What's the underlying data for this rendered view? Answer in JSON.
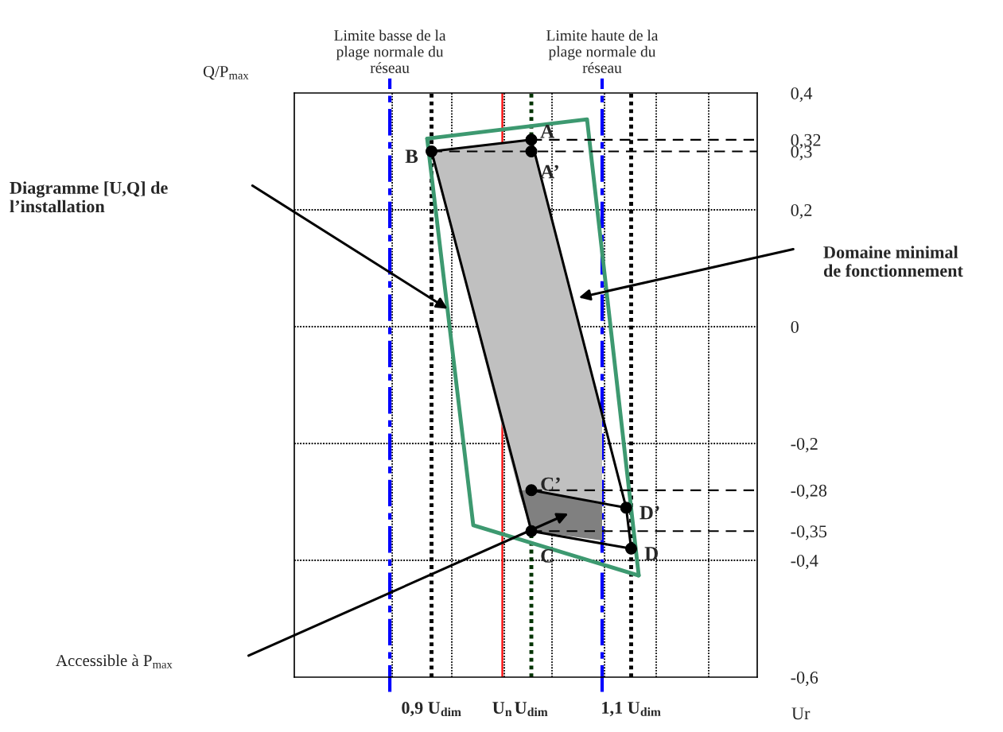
{
  "chart_data": {
    "type": "line",
    "xlabel": "Ur",
    "ylabel": "Q/P$_{max}$",
    "xlim": [
      0.7625,
      1.2263
    ],
    "ylim": [
      -0.6,
      0.4
    ],
    "xticks": [
      {
        "value": 0.9,
        "label": "0,9 U$_{dim}$"
      },
      {
        "value": 0.9709,
        "label": "U$_{n}$"
      },
      {
        "value": 1.0,
        "label": "U$_{dim}$"
      },
      {
        "value": 1.1,
        "label": "1,1 U$_{dim}$"
      }
    ],
    "yticks": [
      {
        "value": 0.4,
        "label": "0,4"
      },
      {
        "value": 0.32,
        "label": "0,32"
      },
      {
        "value": 0.3,
        "label": "0,3"
      },
      {
        "value": 0.2,
        "label": "0,2"
      },
      0,
      {
        "value": -0.2,
        "label": "-0,2"
      },
      {
        "value": -0.28,
        "label": "-0,28"
      },
      {
        "value": -0.35,
        "label": "-0,35"
      },
      {
        "value": -0.4,
        "label": "-0,4"
      },
      {
        "value": -0.6,
        "label": "-0,6"
      }
    ],
    "series": [
      {
        "type": "area",
        "color": "#c0c0c0",
        "x": [
          0.9,
          1.0,
          1.0709,
          1.0709,
          1.0,
          0.987
        ],
        "values": [
          0.3,
          0.32,
          -0.155,
          -0.304,
          -0.28,
          -0.28
        ]
      },
      {
        "type": "area",
        "color": "#808080",
        "x": [
          0.987,
          1.0,
          1.0709,
          1.0709,
          1.0
        ],
        "values": [
          -0.28,
          -0.28,
          -0.304,
          -0.366,
          -0.35
        ]
      },
      {
        "color": "#000000",
        "line_style": "solid",
        "x": [
          0.9,
          1.0,
          1.095,
          1.1
        ],
        "values": [
          0.3,
          0.32,
          -0.31,
          -0.38
        ]
      },
      {
        "color": "#000000",
        "line_style": "solid",
        "x": [
          0.9,
          1.0,
          1.1
        ],
        "values": [
          0.3,
          -0.35,
          -0.38
        ]
      },
      {
        "color": "#000000",
        "line_style": "solid",
        "x": [
          1.0,
          1.095
        ],
        "values": [
          -0.28,
          -0.31
        ]
      },
      {
        "color": "#3d9970",
        "line_style": "solid",
        "x": [
          0.8956,
          1.0558,
          1.1076
        ],
        "values": [
          0.322,
          0.355,
          -0.426
        ]
      },
      {
        "color": "#3d9970",
        "line_style": "solid",
        "x": [
          0.8956,
          0.9418,
          1.1076
        ],
        "values": [
          0.322,
          -0.34,
          -0.426
        ]
      },
      {
        "type": "line",
        "color": "#000000",
        "line_style": "dashed",
        "x": [
          1.0,
          1.2263
        ],
        "values": [
          0.32,
          0.32
        ]
      },
      {
        "type": "line",
        "color": "#000000",
        "line_style": "dashed",
        "x": [
          0.9,
          1.2263
        ],
        "values": [
          0.3,
          0.3
        ]
      },
      {
        "type": "line",
        "color": "#000000",
        "line_style": "dashed",
        "x": [
          1.0,
          1.2263
        ],
        "values": [
          -0.28,
          -0.28
        ]
      },
      {
        "type": "line",
        "color": "#000000",
        "line_style": "dashed",
        "x": [
          1.0,
          1.2263
        ],
        "values": [
          -0.35,
          -0.35
        ]
      },
      {
        "type": "scatter",
        "color": "#000000",
        "marker": "circle",
        "x": [
          0.9,
          1.0,
          1.0,
          1.0,
          1.0,
          1.095,
          1.1
        ],
        "values": [
          0.3,
          0.32,
          0.3,
          -0.28,
          -0.35,
          -0.31,
          -0.38
        ]
      }
    ],
    "ref_lines": [
      {
        "axis": "y",
        "value": 0.2,
        "color": "#000000",
        "line_style": "dotted"
      },
      {
        "axis": "y",
        "value": 0,
        "color": "#000000",
        "line_style": "dotted"
      },
      {
        "axis": "y",
        "value": -0.2,
        "color": "#000000",
        "line_style": "dotted"
      },
      {
        "axis": "y",
        "value": -0.4,
        "color": "#000000",
        "line_style": "dotted"
      },
      {
        "axis": "x",
        "value": 0.8606,
        "color": "#000000",
        "line_style": "dotted"
      },
      {
        "axis": "x",
        "value": 0.9203,
        "color": "#000000",
        "line_style": "dotted"
      },
      {
        "axis": "x",
        "value": 0.9729,
        "color": "#000000",
        "line_style": "dotted"
      },
      {
        "axis": "x",
        "value": 1.0207,
        "color": "#000000",
        "line_style": "dotted"
      },
      {
        "axis": "x",
        "value": 1.0733,
        "color": "#000000",
        "line_style": "dotted"
      },
      {
        "axis": "x",
        "value": 1.1251,
        "color": "#000000",
        "line_style": "dotted"
      },
      {
        "axis": "x",
        "value": 1.1777,
        "color": "#000000",
        "line_style": "dotted"
      },
      {
        "axis": "x",
        "value": 0.8582,
        "color": "#0000ff",
        "line_style": "dashdot",
        "label": "Limite basse de la\nplage normale du\nréseau"
      },
      {
        "axis": "x",
        "value": 1.0709,
        "color": "#0000ff",
        "line_style": "dashdot",
        "label": "Limite haute de la\nplage normale du\nréseau"
      },
      {
        "axis": "x",
        "value": 0.9,
        "color": "#000000",
        "line_style": "heavy_dotted"
      },
      {
        "axis": "x",
        "value": 1.1,
        "color": "#000000",
        "line_style": "heavy_dotted"
      },
      {
        "axis": "x",
        "value": 1.0,
        "color": "#003300",
        "line_style": "heavy_dotted"
      },
      {
        "axis": "x",
        "value": 0.9709,
        "color": "#ff0000",
        "line_style": "solid"
      }
    ],
    "annotations": [
      {
        "text": "B",
        "x": 0.9,
        "y": 0.3
      },
      {
        "text": "A",
        "x": 1.0,
        "y": 0.32
      },
      {
        "text": "A’",
        "x": 1.0,
        "y": 0.3
      },
      {
        "text": "C’",
        "x": 1.0,
        "y": -0.28
      },
      {
        "text": "C",
        "x": 1.0,
        "y": -0.35
      },
      {
        "text": "D’",
        "x": 1.095,
        "y": -0.31
      },
      {
        "text": "D",
        "x": 1.1,
        "y": -0.38
      },
      "Diagramme [U,Q] de\nl’installation",
      "Domaine minimal\nde fonctionnement",
      "Accessible à P$_{max}$"
    ]
  }
}
